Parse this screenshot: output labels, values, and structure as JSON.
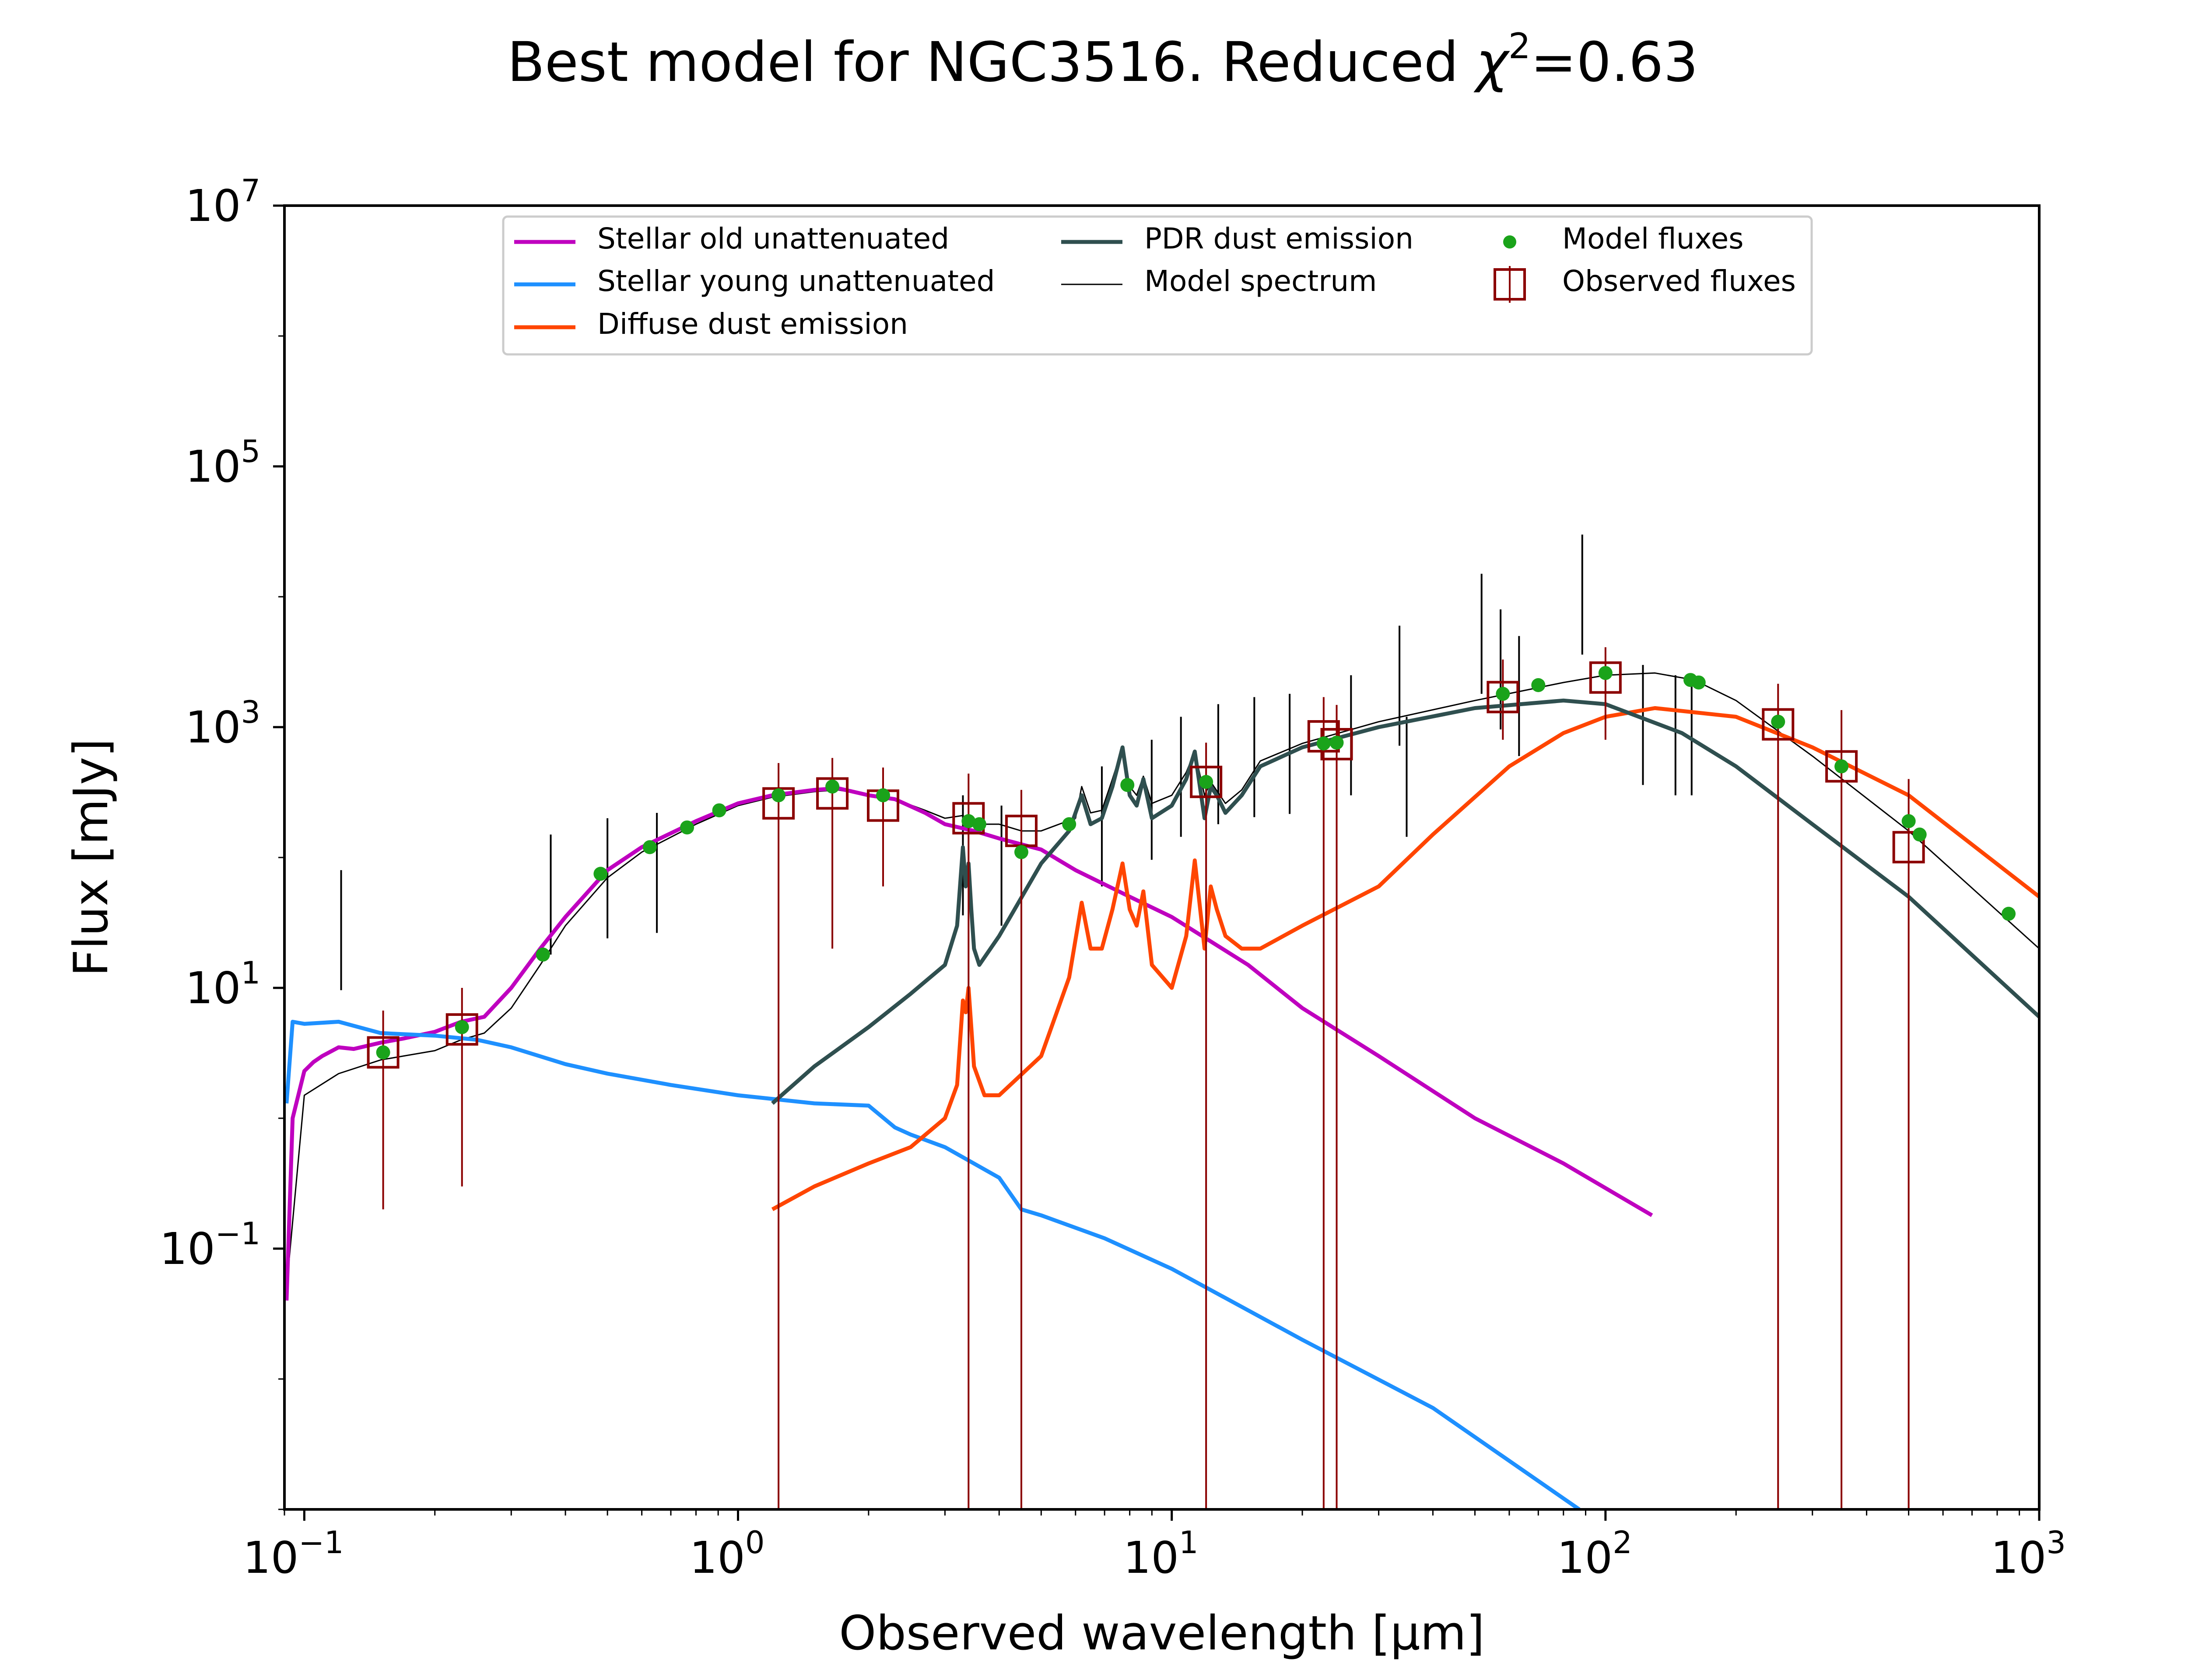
{
  "chart_data": {
    "type": "line",
    "title": "Best model for NGC3516. Reduced χ²=0.63",
    "title_parts": {
      "prefix": "Best model for NGC3516. Reduced ",
      "symbol": "χ",
      "sup": "2",
      "suffix": "=0.63"
    },
    "xlabel": "Observed wavelength [μm]",
    "ylabel": "Flux [mJy]",
    "xscale": "log",
    "yscale": "log",
    "xlim": [
      0.09,
      1000
    ],
    "ylim": [
      0.001,
      10000000
    ],
    "xticks": [
      {
        "value": 0.1,
        "base": "10",
        "exp": "−1"
      },
      {
        "value": 1,
        "base": "10",
        "exp": "0"
      },
      {
        "value": 10,
        "base": "10",
        "exp": "1"
      },
      {
        "value": 100,
        "base": "10",
        "exp": "2"
      },
      {
        "value": 1000,
        "base": "10",
        "exp": "3"
      }
    ],
    "yticks": [
      {
        "value": 0.1,
        "base": "10",
        "exp": "−1"
      },
      {
        "value": 10,
        "base": "10",
        "exp": "1"
      },
      {
        "value": 1000,
        "base": "10",
        "exp": "3"
      },
      {
        "value": 100000,
        "base": "10",
        "exp": "5"
      },
      {
        "value": 10000000,
        "base": "10",
        "exp": "7"
      }
    ],
    "grid": false,
    "legend_position": "top-center",
    "series": [
      {
        "name": "Stellar old unattenuated",
        "kind": "line",
        "color": "#bf00bf",
        "x": [
          0.091,
          0.094,
          0.1,
          0.105,
          0.11,
          0.12,
          0.13,
          0.15,
          0.17,
          0.2,
          0.23,
          0.26,
          0.3,
          0.35,
          0.4,
          0.5,
          0.6,
          0.8,
          1.0,
          1.2,
          1.5,
          1.7,
          2.0,
          2.3,
          2.7,
          3.0,
          3.5,
          4.0,
          5.0,
          6.0,
          8.0,
          10,
          15,
          20,
          30,
          50,
          80,
          128
        ],
        "y": [
          0.04,
          1.0,
          2.3,
          2.7,
          3.0,
          3.5,
          3.4,
          3.8,
          4.1,
          4.6,
          5.5,
          6.0,
          10,
          20,
          35,
          80,
          120,
          190,
          260,
          300,
          330,
          340,
          300,
          280,
          220,
          180,
          160,
          140,
          115,
          80,
          50,
          35,
          15,
          7,
          3,
          1,
          0.45,
          0.18
        ]
      },
      {
        "name": "Stellar young unattenuated",
        "kind": "line",
        "color": "#1e90ff",
        "x": [
          0.091,
          0.094,
          0.1,
          0.12,
          0.15,
          0.2,
          0.25,
          0.3,
          0.4,
          0.5,
          0.7,
          1.0,
          1.5,
          2.0,
          2.3,
          2.5,
          3.0,
          4.0,
          4.5,
          5.0,
          7.0,
          10,
          20,
          40,
          87
        ],
        "y": [
          1.3,
          5.5,
          5.3,
          5.5,
          4.5,
          4.3,
          4.0,
          3.5,
          2.6,
          2.2,
          1.8,
          1.5,
          1.3,
          1.25,
          0.85,
          0.75,
          0.6,
          0.35,
          0.2,
          0.18,
          0.12,
          0.07,
          0.02,
          0.006,
          0.001
        ]
      },
      {
        "name": "Diffuse dust emission",
        "kind": "line",
        "color": "#ff4500",
        "x": [
          1.2,
          1.5,
          2.0,
          2.5,
          3.0,
          3.2,
          3.3,
          3.35,
          3.4,
          3.45,
          3.5,
          3.7,
          4.0,
          5.0,
          5.8,
          6.2,
          6.5,
          6.9,
          7.3,
          7.7,
          8.0,
          8.3,
          8.6,
          9.0,
          10,
          10.8,
          11.3,
          11.9,
          12.3,
          12.7,
          13.3,
          14.5,
          16,
          20,
          30,
          40,
          60,
          80,
          100,
          130,
          200,
          300,
          500,
          1000
        ],
        "y": [
          0.2,
          0.3,
          0.45,
          0.6,
          1.0,
          1.8,
          8.0,
          6.5,
          10,
          5.0,
          2.5,
          1.5,
          1.5,
          3.0,
          12,
          45,
          20,
          20,
          40,
          90,
          40,
          30,
          55,
          15,
          10,
          25,
          95,
          20,
          60,
          40,
          25,
          20,
          20,
          30,
          60,
          150,
          500,
          900,
          1200,
          1400,
          1200,
          700,
          300,
          50
        ]
      },
      {
        "name": "PDR dust emission",
        "kind": "line",
        "color": "#2f4f4f",
        "x": [
          1.2,
          1.5,
          2.0,
          2.5,
          3.0,
          3.2,
          3.3,
          3.35,
          3.4,
          3.45,
          3.5,
          3.6,
          4.0,
          5.0,
          5.8,
          6.2,
          6.5,
          6.9,
          7.3,
          7.7,
          8.0,
          8.3,
          8.6,
          9.0,
          10,
          10.8,
          11.3,
          11.9,
          12.3,
          12.7,
          13.3,
          14.5,
          16,
          20,
          30,
          50,
          80,
          100,
          150,
          200,
          300,
          500,
          1000
        ],
        "y": [
          1.3,
          2.5,
          5.0,
          9.0,
          15,
          30,
          120,
          60,
          90,
          40,
          20,
          15,
          25,
          90,
          160,
          300,
          180,
          200,
          350,
          700,
          300,
          250,
          400,
          200,
          250,
          400,
          650,
          200,
          350,
          300,
          220,
          300,
          500,
          700,
          1000,
          1400,
          1600,
          1500,
          900,
          500,
          180,
          50,
          6
        ]
      },
      {
        "name": "Model spectrum",
        "kind": "line",
        "color": "#000000",
        "x": [
          0.091,
          0.1,
          0.12,
          0.15,
          0.2,
          0.23,
          0.26,
          0.3,
          0.35,
          0.4,
          0.5,
          0.6,
          0.8,
          1.0,
          1.2,
          1.5,
          1.7,
          2.0,
          2.3,
          2.7,
          3.0,
          3.3,
          3.4,
          3.5,
          4.0,
          4.5,
          5.0,
          5.5,
          6.0,
          6.2,
          6.5,
          6.9,
          7.3,
          7.7,
          8.0,
          8.3,
          8.6,
          9.0,
          10,
          10.8,
          11.3,
          11.9,
          12.3,
          13.3,
          14.5,
          16,
          20,
          30,
          50,
          80,
          100,
          130,
          160,
          200,
          300,
          500,
          1000
        ],
        "y": [
          0.05,
          1.5,
          2.2,
          2.8,
          3.3,
          4.0,
          4.5,
          7.0,
          15,
          30,
          70,
          110,
          180,
          250,
          290,
          320,
          330,
          300,
          280,
          230,
          200,
          210,
          190,
          180,
          180,
          160,
          160,
          180,
          200,
          350,
          220,
          230,
          400,
          700,
          350,
          300,
          420,
          260,
          300,
          450,
          650,
          300,
          380,
          260,
          330,
          550,
          750,
          1100,
          1600,
          2200,
          2500,
          2600,
          2300,
          1600,
          600,
          160,
          20
        ]
      },
      {
        "name": "",
        "kind": "spikes",
        "color": "#000000",
        "x": [
          0.1216,
          0.37,
          0.5,
          0.65,
          3.3,
          4.05,
          6.9,
          8.99,
          10.5,
          12.8,
          15.5,
          18.7,
          25.9,
          33.5,
          34.8,
          51.8,
          57.3,
          63.2,
          88.4,
          122,
          145,
          158
        ],
        "y": [
          80,
          150,
          200,
          220,
          300,
          250,
          500,
          800,
          1200,
          1500,
          1700,
          1800,
          2500,
          6000,
          1200,
          15000,
          8000,
          5000,
          30000,
          3000,
          2500,
          2500
        ]
      },
      {
        "name": "Model fluxes",
        "kind": "markers",
        "marker": "circle",
        "color": "#1aa31a",
        "x": [
          0.152,
          0.231,
          0.355,
          0.482,
          0.626,
          0.763,
          0.905,
          1.24,
          1.65,
          2.16,
          3.4,
          3.6,
          4.5,
          5.8,
          7.9,
          12,
          22.4,
          24,
          58,
          70,
          100,
          157,
          164,
          250,
          350,
          500,
          530,
          850
        ],
        "y": [
          3.2,
          5.0,
          18,
          75,
          120,
          170,
          230,
          300,
          350,
          300,
          190,
          180,
          110,
          180,
          360,
          380,
          750,
          760,
          1800,
          2100,
          2600,
          2300,
          2200,
          1100,
          500,
          190,
          150,
          37
        ]
      },
      {
        "name": "Observed fluxes",
        "kind": "errorbar",
        "marker": "square",
        "color": "#8b0000",
        "x": [
          0.152,
          0.231,
          1.24,
          1.65,
          2.16,
          3.4,
          4.5,
          12,
          22.4,
          24,
          58,
          100,
          250,
          350,
          500
        ],
        "y": [
          3.2,
          4.8,
          260,
          310,
          250,
          200,
          160,
          380,
          850,
          740,
          1700,
          2400,
          1050,
          500,
          120
        ],
        "yerr_low": [
          3.0,
          4.5,
          260,
          290,
          190,
          200,
          160,
          380,
          850,
          740,
          900,
          1600,
          1050,
          500,
          120
        ],
        "yerr_high": [
          3.5,
          5.2,
          270,
          270,
          240,
          240,
          170,
          380,
          850,
          740,
          1600,
          1700,
          1100,
          850,
          280
        ]
      }
    ]
  }
}
